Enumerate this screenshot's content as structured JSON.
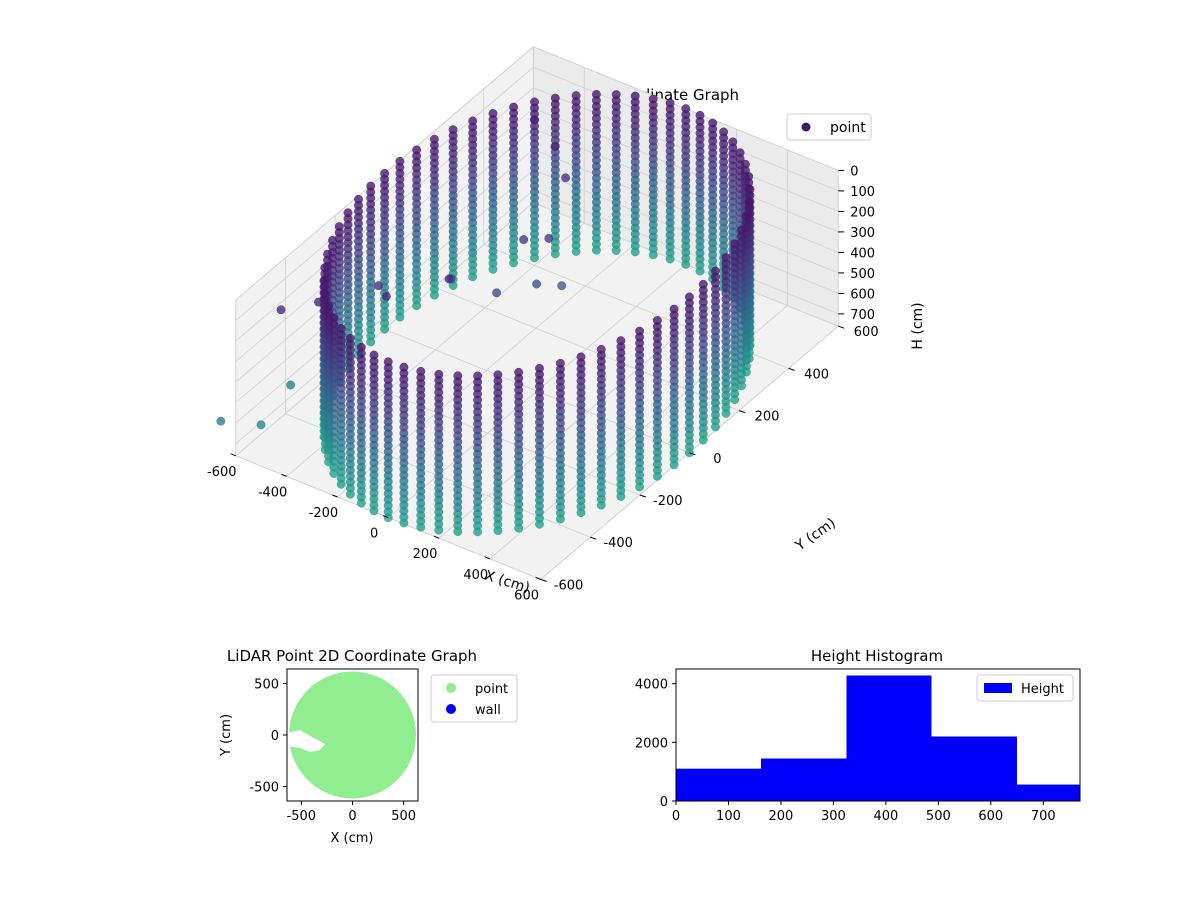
{
  "chart_data": [
    {
      "type": "scatter",
      "projection": "3d",
      "title": "LiDAR Point 3D Coordinate Graph",
      "xlabel": "X (cm)",
      "ylabel": "Y (cm)",
      "zlabel": "H (cm)",
      "xlim": [
        -600,
        600
      ],
      "ylim": [
        -600,
        600
      ],
      "zlim": [
        0,
        760
      ],
      "z_inverted": true,
      "xticks": [
        "-600",
        "-400",
        "-200",
        "0",
        "200",
        "400",
        "600"
      ],
      "yticks": [
        "-600",
        "-400",
        "-200",
        "0",
        "200",
        "400",
        "600"
      ],
      "zticks": [
        "0",
        "100",
        "200",
        "300",
        "400",
        "500",
        "600",
        "700"
      ],
      "legend": {
        "location": "top-right",
        "entries": [
          {
            "label": "point",
            "color": "#46166b"
          }
        ]
      },
      "colormap": "viridis",
      "grid": true,
      "description_of_data": "cylindrical wall of points, radius about 600 cm, heights 0-760 cm",
      "wall": {
        "center": [
          0,
          0
        ],
        "radius": 600,
        "h_range": [
          0,
          760
        ]
      }
    },
    {
      "type": "scatter",
      "title": "LiDAR Point 2D Coordinate Graph",
      "xlabel": "X (cm)",
      "ylabel": "Y (cm)",
      "xlim": [
        -640,
        640
      ],
      "ylim": [
        -640,
        640
      ],
      "xticks": [
        "-500",
        "0",
        "500"
      ],
      "yticks": [
        "-500",
        "0",
        "500"
      ],
      "legend": {
        "location": "outside-right",
        "entries": [
          {
            "label": "point",
            "color": "#90ee90"
          },
          {
            "label": "wall",
            "color": "#0000ff"
          }
        ]
      },
      "grid": false,
      "region": {
        "center": [
          0,
          0
        ],
        "radius": 620
      }
    },
    {
      "type": "bar",
      "title": "Height Histogram",
      "legend": {
        "location": "top-right",
        "entries": [
          {
            "label": "Height",
            "color": "#0000ff"
          }
        ]
      },
      "bins": [
        {
          "from": 0,
          "to": 162,
          "count": 1100
        },
        {
          "from": 162,
          "to": 325,
          "count": 1450
        },
        {
          "from": 325,
          "to": 487,
          "count": 4280
        },
        {
          "from": 487,
          "to": 650,
          "count": 2200
        },
        {
          "from": 650,
          "to": 770,
          "count": 560
        }
      ],
      "xlim": [
        0,
        770
      ],
      "ylim": [
        0,
        4500
      ],
      "xticks": [
        "0",
        "100",
        "200",
        "300",
        "400",
        "500",
        "600",
        "700"
      ],
      "yticks": [
        "0",
        "2000",
        "4000"
      ],
      "color": "#0000ff",
      "grid": false
    }
  ]
}
